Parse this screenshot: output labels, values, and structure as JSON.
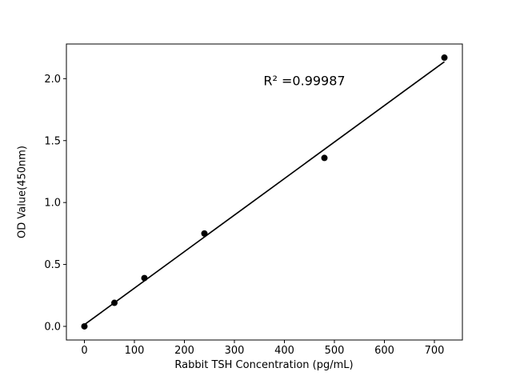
{
  "chart_data": {
    "type": "scatter",
    "title": "",
    "xlabel": "Rabbit TSH Concentration (pg/mL)",
    "ylabel": "OD Value(450nm)",
    "x": [
      0,
      60,
      120,
      240,
      480,
      720
    ],
    "y": [
      0.0,
      0.19,
      0.39,
      0.75,
      1.36,
      2.17
    ],
    "xlim": [
      -36,
      756
    ],
    "ylim": [
      -0.11,
      2.28
    ],
    "xticks": [
      0,
      100,
      200,
      300,
      400,
      500,
      600,
      700
    ],
    "xtick_labels": [
      "0",
      "100",
      "200",
      "300",
      "400",
      "500",
      "600",
      "700"
    ],
    "yticks": [
      0.0,
      0.5,
      1.0,
      1.5,
      2.0
    ],
    "ytick_labels": [
      "0.0",
      "0.5",
      "1.0",
      "1.5",
      "2.0"
    ],
    "grid": false,
    "legend_position": "none",
    "fit_line": true,
    "annotation": {
      "text": "R² =0.99987",
      "x": 440,
      "y": 1.98
    },
    "colors": {
      "marker": "#000000",
      "line": "#000000",
      "axis": "#000000",
      "background": "#ffffff"
    }
  }
}
